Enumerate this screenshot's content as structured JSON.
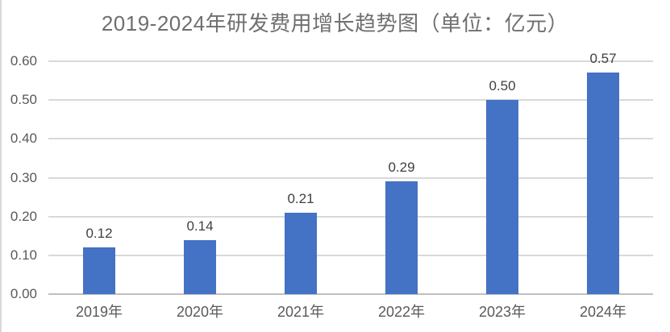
{
  "chart_data": {
    "type": "bar",
    "title": "2019-2024年研发费用增长趋势图（单位：亿元）",
    "categories": [
      "2019年",
      "2020年",
      "2021年",
      "2022年",
      "2023年",
      "2024年"
    ],
    "values": [
      0.12,
      0.14,
      0.21,
      0.29,
      0.5,
      0.57
    ],
    "value_labels": [
      "0.12",
      "0.14",
      "0.21",
      "0.29",
      "0.50",
      "0.57"
    ],
    "xlabel": "",
    "ylabel": "",
    "ylim": [
      0,
      0.6
    ],
    "ytick_step": 0.1,
    "ytick_labels": [
      "0.00",
      "0.10",
      "0.20",
      "0.30",
      "0.40",
      "0.50",
      "0.60"
    ],
    "grid": "horizontal-gridlines-on",
    "legend": "none",
    "data_labels": "above-bars"
  },
  "colors": {
    "bar": "#4472c4",
    "title_text": "#6f6f6f",
    "axis_text": "#595959",
    "value_label_text": "#404040",
    "gridline": "#d9d9d9",
    "axis_line": "#bfbfbf",
    "left_border": "#d9d9d9",
    "background": "#ffffff"
  }
}
